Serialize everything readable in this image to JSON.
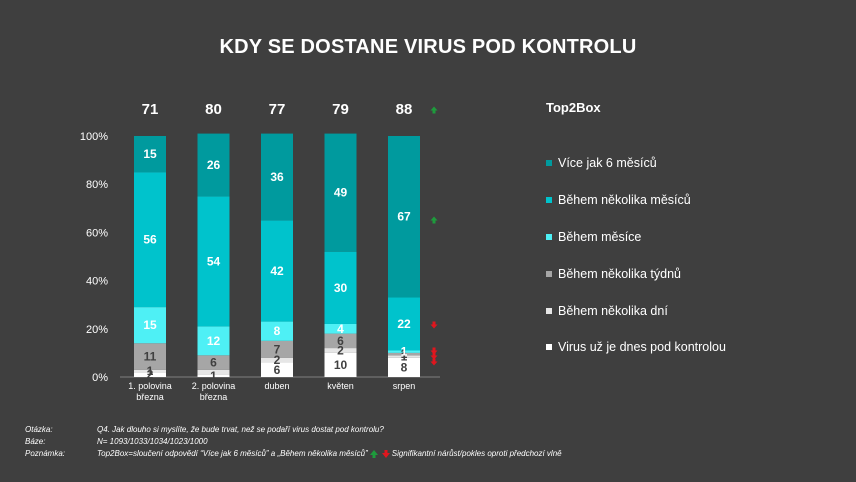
{
  "title": "KDY SE DOSTANE VIRUS POD KONTROLU",
  "legend_title": "Top2Box",
  "chart_data": {
    "type": "bar",
    "stacked": true,
    "categories": [
      "1. polovina března",
      "2. polovina března",
      "duben",
      "květen",
      "srpen"
    ],
    "category_lines": [
      [
        "1. polovina",
        "března"
      ],
      [
        "2. polovina",
        "března"
      ],
      [
        "duben"
      ],
      [
        "květen"
      ],
      [
        "srpen"
      ]
    ],
    "top2box": [
      "71",
      "80",
      "77",
      "79",
      "88"
    ],
    "ylim": [
      0,
      100
    ],
    "yticks": [
      "0%",
      "20%",
      "40%",
      "60%",
      "80%",
      "100%"
    ],
    "series": [
      {
        "name": "Virus už je dnes pod kontrolou",
        "color": "#ffffff",
        "values": [
          2,
          1,
          6,
          10,
          8
        ],
        "labels": [
          "2",
          "1",
          "6",
          "10",
          "8"
        ],
        "label_color": "#404040"
      },
      {
        "name": "Během několika dní",
        "color": "#e6e6e6",
        "values": [
          1,
          2,
          2,
          2,
          1
        ],
        "labels": [
          "1",
          "",
          "2",
          "2",
          "1"
        ],
        "label_color": "#404040"
      },
      {
        "name": "Během několika týdnů",
        "color": "#a6a6a6",
        "values": [
          11,
          6,
          7,
          6,
          1
        ],
        "labels": [
          "11",
          "6",
          "7",
          "6",
          "1"
        ],
        "label_color": "#404040"
      },
      {
        "name": "Během měsíce",
        "color": "#4ef0f5",
        "values": [
          15,
          12,
          8,
          4,
          1
        ],
        "labels": [
          "15",
          "12",
          "8",
          "4",
          "1"
        ],
        "label_color": "#ffffff"
      },
      {
        "name": "Během několika měsíců",
        "color": "#00c3cc",
        "values": [
          56,
          54,
          42,
          30,
          22
        ],
        "labels": [
          "56",
          "54",
          "42",
          "30",
          "22"
        ],
        "label_color": "#ffffff"
      },
      {
        "name": "Více jak 6 měsíců",
        "color": "#009a9e",
        "values": [
          15,
          26,
          36,
          49,
          67
        ],
        "labels": [
          "15",
          "26",
          "36",
          "49",
          "67"
        ],
        "label_color": "#ffffff"
      }
    ],
    "significance": {
      "top2box_srpen": "up",
      "srpen_vice_jak_6_mesicu": "up",
      "srpen_behem_nekolika_mesicu": "down",
      "srpen_behem_mesice": "down",
      "srpen_behem_nekolika_dni": "down",
      "srpen_virus_pod_kontrolou": "down"
    },
    "colors": {
      "up": "#1e9b3c",
      "down": "#e0161e"
    }
  },
  "legend_items": [
    {
      "label": "Více jak 6 měsíců",
      "color": "#009a9e"
    },
    {
      "label": "Během několika měsíců",
      "color": "#00c3cc"
    },
    {
      "label": "Během měsíce",
      "color": "#4ef0f5"
    },
    {
      "label": "Během několika týdnů",
      "color": "#a6a6a6"
    },
    {
      "label": "Během několika dní",
      "color": "#e6e6e6"
    },
    {
      "label": "Virus už je dnes pod kontrolou",
      "color": "#ffffff"
    }
  ],
  "notes": {
    "question_label": "Otázka:",
    "question": "Q4. Jak dlouho si myslíte, že bude trvat, než se podaří virus dostat pod kontrolu?",
    "base_label": "Báze:",
    "base": "N= 1093/1033/1034/1023/1000",
    "note_label": "Poznámka:",
    "note": "Top2Box=sloučení odpovědí “Více jak 6 měsíců” a „Během několika měsíců”",
    "significance": "Signifikantní nárůst/pokles oproti předchozí vlně"
  }
}
